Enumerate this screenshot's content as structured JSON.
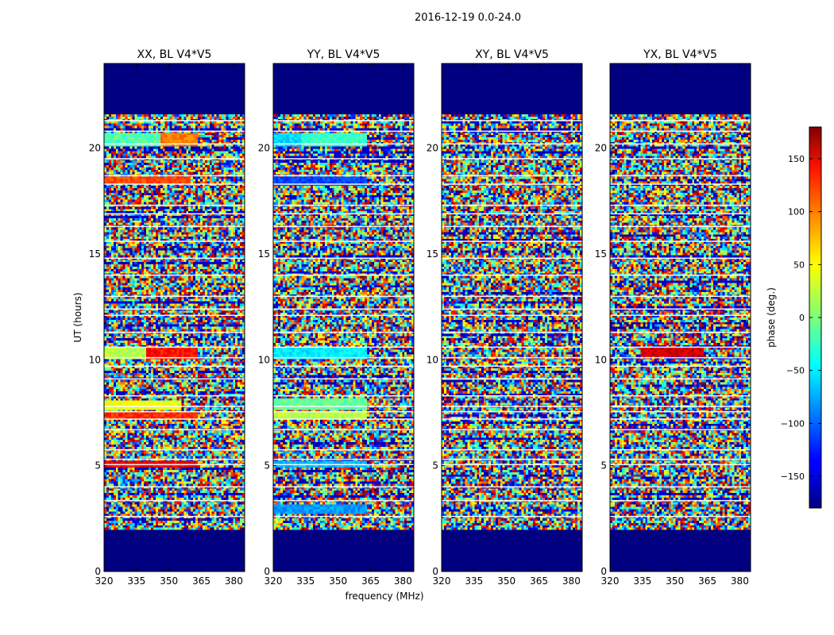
{
  "figure": {
    "title": "2016-12-19 0.0-24.0"
  },
  "chart_data": {
    "type": "heatmap",
    "xlabel": "frequency (MHz)",
    "ylabel": "UT (hours)",
    "xlim": [
      320,
      385
    ],
    "ylim": [
      0,
      24
    ],
    "xticks": [
      320,
      335,
      350,
      365,
      380
    ],
    "yticks": [
      0,
      5,
      10,
      15,
      20
    ],
    "panels": [
      {
        "title": "XX, BL V4*V5",
        "coherent_bands": [
          {
            "t": 20.45,
            "dt": 0.35,
            "f1": 320,
            "f2": 347,
            "phase": -15
          },
          {
            "t": 20.45,
            "dt": 0.35,
            "f1": 347,
            "f2": 363,
            "phase": 90
          },
          {
            "t": 18.55,
            "dt": 0.2,
            "f1": 320,
            "f2": 360,
            "phase": 110
          },
          {
            "t": 10.4,
            "dt": 0.35,
            "f1": 320,
            "f2": 340,
            "phase": 20
          },
          {
            "t": 10.4,
            "dt": 0.35,
            "f1": 340,
            "f2": 363,
            "phase": 130
          },
          {
            "t": 7.95,
            "dt": 0.2,
            "f1": 320,
            "f2": 355,
            "phase": 40
          },
          {
            "t": 7.45,
            "dt": 0.15,
            "f1": 320,
            "f2": 363,
            "phase": 120
          },
          {
            "t": 5.1,
            "dt": 0.15,
            "f1": 320,
            "f2": 363,
            "phase": 140
          }
        ]
      },
      {
        "title": "YY, BL V4*V5",
        "coherent_bands": [
          {
            "t": 20.45,
            "dt": 0.35,
            "f1": 320,
            "f2": 334,
            "phase": -60
          },
          {
            "t": 20.45,
            "dt": 0.35,
            "f1": 334,
            "f2": 363,
            "phase": -25
          },
          {
            "t": 18.5,
            "dt": 0.3,
            "f1": 320,
            "f2": 363,
            "phase": -110
          },
          {
            "t": 10.4,
            "dt": 0.35,
            "f1": 320,
            "f2": 363,
            "phase": -50
          },
          {
            "t": 7.95,
            "dt": 0.25,
            "f1": 320,
            "f2": 363,
            "phase": -10
          },
          {
            "t": 7.45,
            "dt": 0.15,
            "f1": 320,
            "f2": 363,
            "phase": 20
          },
          {
            "t": 5.1,
            "dt": 0.15,
            "f1": 320,
            "f2": 363,
            "phase": -70
          },
          {
            "t": 3.0,
            "dt": 0.2,
            "f1": 320,
            "f2": 363,
            "phase": -80
          }
        ]
      },
      {
        "title": "XY, BL V4*V5",
        "coherent_bands": []
      },
      {
        "title": "YX, BL V4*V5",
        "coherent_bands": [
          {
            "t": 10.45,
            "dt": 0.2,
            "f1": 335,
            "f2": 363,
            "phase": 150
          }
        ]
      }
    ],
    "empty_rows": [
      [
        0,
        2.0
      ],
      [
        21.65,
        24
      ]
    ],
    "flagged_rows": [
      2.6,
      3.35,
      4.0,
      5.05,
      5.3,
      5.75,
      6.7,
      7.2,
      7.55,
      7.8,
      8.3,
      9.1,
      9.7,
      10.1,
      10.6,
      11.3,
      12.1,
      12.4,
      13.0,
      14.0,
      14.8,
      15.6,
      16.3,
      16.9,
      17.3,
      18.3,
      18.7,
      19.5,
      20.2,
      20.8,
      21.3
    ],
    "colorbar": {
      "label": "phase (deg.)",
      "range": [
        -180,
        180
      ],
      "ticks": [
        -150,
        -100,
        -50,
        0,
        50,
        100,
        150
      ],
      "colormap": "jet"
    }
  }
}
